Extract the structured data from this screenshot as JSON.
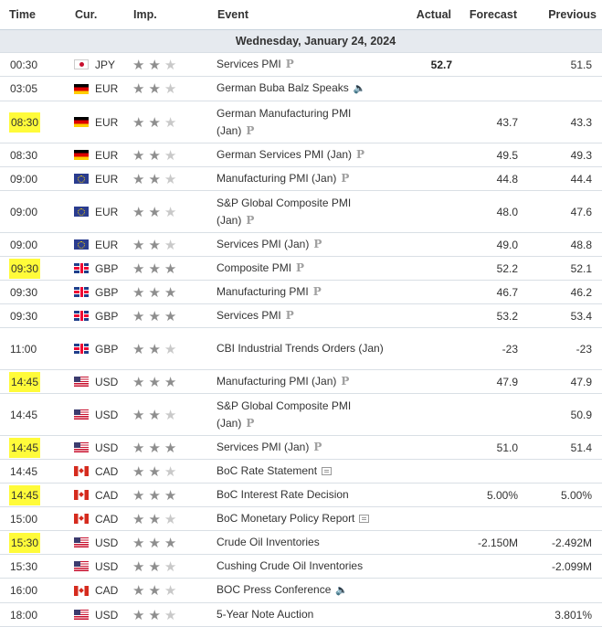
{
  "headers": {
    "time": "Time",
    "cur": "Cur.",
    "imp": "Imp.",
    "event": "Event",
    "actual": "Actual",
    "forecast": "Forecast",
    "previous": "Previous"
  },
  "date_label": "Wednesday, January 24, 2024",
  "colors": {
    "highlight": "#fffb3a",
    "date_bg": "#e6eaef"
  },
  "rows": [
    {
      "time": "00:30",
      "cur": "JPY",
      "flag": "japan-flag-icon",
      "imp": 2,
      "event": "Services PMI",
      "icon": "preliminary-icon",
      "actual": "52.7",
      "forecast": "",
      "previous": "51.5",
      "hl": false,
      "tall": false
    },
    {
      "time": "03:05",
      "cur": "EUR",
      "flag": "germany-flag-icon",
      "imp": 2,
      "event": "German Buba Balz Speaks",
      "icon": "speaker-icon",
      "actual": "",
      "forecast": "",
      "previous": "",
      "hl": false,
      "tall": false
    },
    {
      "time": "08:30",
      "cur": "EUR",
      "flag": "germany-flag-icon",
      "imp": 2,
      "event": "German Manufacturing PMI (Jan)",
      "icon": "preliminary-icon",
      "actual": "",
      "forecast": "43.7",
      "previous": "43.3",
      "hl": true,
      "tall": true
    },
    {
      "time": "08:30",
      "cur": "EUR",
      "flag": "germany-flag-icon",
      "imp": 2,
      "event": "German Services PMI (Jan)",
      "icon": "preliminary-icon",
      "actual": "",
      "forecast": "49.5",
      "previous": "49.3",
      "hl": false,
      "tall": false
    },
    {
      "time": "09:00",
      "cur": "EUR",
      "flag": "eu-flag-icon",
      "imp": 2,
      "event": "Manufacturing PMI (Jan)",
      "icon": "preliminary-icon",
      "actual": "",
      "forecast": "44.8",
      "previous": "44.4",
      "hl": false,
      "tall": false
    },
    {
      "time": "09:00",
      "cur": "EUR",
      "flag": "eu-flag-icon",
      "imp": 2,
      "event": "S&P Global Composite PMI (Jan)",
      "icon": "preliminary-icon",
      "actual": "",
      "forecast": "48.0",
      "previous": "47.6",
      "hl": false,
      "tall": true
    },
    {
      "time": "09:00",
      "cur": "EUR",
      "flag": "eu-flag-icon",
      "imp": 2,
      "event": "Services PMI (Jan)",
      "icon": "preliminary-icon",
      "actual": "",
      "forecast": "49.0",
      "previous": "48.8",
      "hl": false,
      "tall": false
    },
    {
      "time": "09:30",
      "cur": "GBP",
      "flag": "uk-flag-icon",
      "imp": 3,
      "event": "Composite PMI",
      "icon": "preliminary-icon",
      "actual": "",
      "forecast": "52.2",
      "previous": "52.1",
      "hl": true,
      "tall": false
    },
    {
      "time": "09:30",
      "cur": "GBP",
      "flag": "uk-flag-icon",
      "imp": 3,
      "event": "Manufacturing PMI",
      "icon": "preliminary-icon",
      "actual": "",
      "forecast": "46.7",
      "previous": "46.2",
      "hl": false,
      "tall": false
    },
    {
      "time": "09:30",
      "cur": "GBP",
      "flag": "uk-flag-icon",
      "imp": 3,
      "event": "Services PMI",
      "icon": "preliminary-icon",
      "actual": "",
      "forecast": "53.2",
      "previous": "53.4",
      "hl": false,
      "tall": false
    },
    {
      "time": "11:00",
      "cur": "GBP",
      "flag": "uk-flag-icon",
      "imp": 2,
      "event": "CBI Industrial Trends Orders (Jan)",
      "icon": "",
      "actual": "",
      "forecast": "-23",
      "previous": "-23",
      "hl": false,
      "tall": true
    },
    {
      "time": "14:45",
      "cur": "USD",
      "flag": "us-flag-icon",
      "imp": 3,
      "event": "Manufacturing PMI (Jan)",
      "icon": "preliminary-icon",
      "actual": "",
      "forecast": "47.9",
      "previous": "47.9",
      "hl": true,
      "tall": false
    },
    {
      "time": "14:45",
      "cur": "USD",
      "flag": "us-flag-icon",
      "imp": 2,
      "event": "S&P Global Composite PMI (Jan)",
      "icon": "preliminary-icon",
      "actual": "",
      "forecast": "",
      "previous": "50.9",
      "hl": false,
      "tall": true
    },
    {
      "time": "14:45",
      "cur": "USD",
      "flag": "us-flag-icon",
      "imp": 3,
      "event": "Services PMI (Jan)",
      "icon": "preliminary-icon",
      "actual": "",
      "forecast": "51.0",
      "previous": "51.4",
      "hl": true,
      "tall": false
    },
    {
      "time": "14:45",
      "cur": "CAD",
      "flag": "canada-flag-icon",
      "imp": 2,
      "event": "BoC Rate Statement",
      "icon": "document-icon",
      "actual": "",
      "forecast": "",
      "previous": "",
      "hl": false,
      "tall": false
    },
    {
      "time": "14:45",
      "cur": "CAD",
      "flag": "canada-flag-icon",
      "imp": 3,
      "event": "BoC Interest Rate Decision",
      "icon": "",
      "actual": "",
      "forecast": "5.00%",
      "previous": "5.00%",
      "hl": true,
      "tall": false
    },
    {
      "time": "15:00",
      "cur": "CAD",
      "flag": "canada-flag-icon",
      "imp": 2,
      "event": "BoC Monetary Policy Report",
      "icon": "document-icon",
      "actual": "",
      "forecast": "",
      "previous": "",
      "hl": false,
      "tall": false
    },
    {
      "time": "15:30",
      "cur": "USD",
      "flag": "us-flag-icon",
      "imp": 3,
      "event": "Crude Oil Inventories",
      "icon": "",
      "actual": "",
      "forecast": "-2.150M",
      "previous": "-2.492M",
      "hl": true,
      "tall": false
    },
    {
      "time": "15:30",
      "cur": "USD",
      "flag": "us-flag-icon",
      "imp": 2,
      "event": "Cushing Crude Oil Inventories",
      "icon": "",
      "actual": "",
      "forecast": "",
      "previous": "-2.099M",
      "hl": false,
      "tall": false
    },
    {
      "time": "16:00",
      "cur": "CAD",
      "flag": "canada-flag-icon",
      "imp": 2,
      "event": "BOC Press Conference",
      "icon": "speaker-icon",
      "actual": "",
      "forecast": "",
      "previous": "",
      "hl": false,
      "tall": false
    },
    {
      "time": "18:00",
      "cur": "USD",
      "flag": "us-flag-icon",
      "imp": 2,
      "event": "5-Year Note Auction",
      "icon": "",
      "actual": "",
      "forecast": "",
      "previous": "3.801%",
      "hl": false,
      "tall": false
    }
  ]
}
